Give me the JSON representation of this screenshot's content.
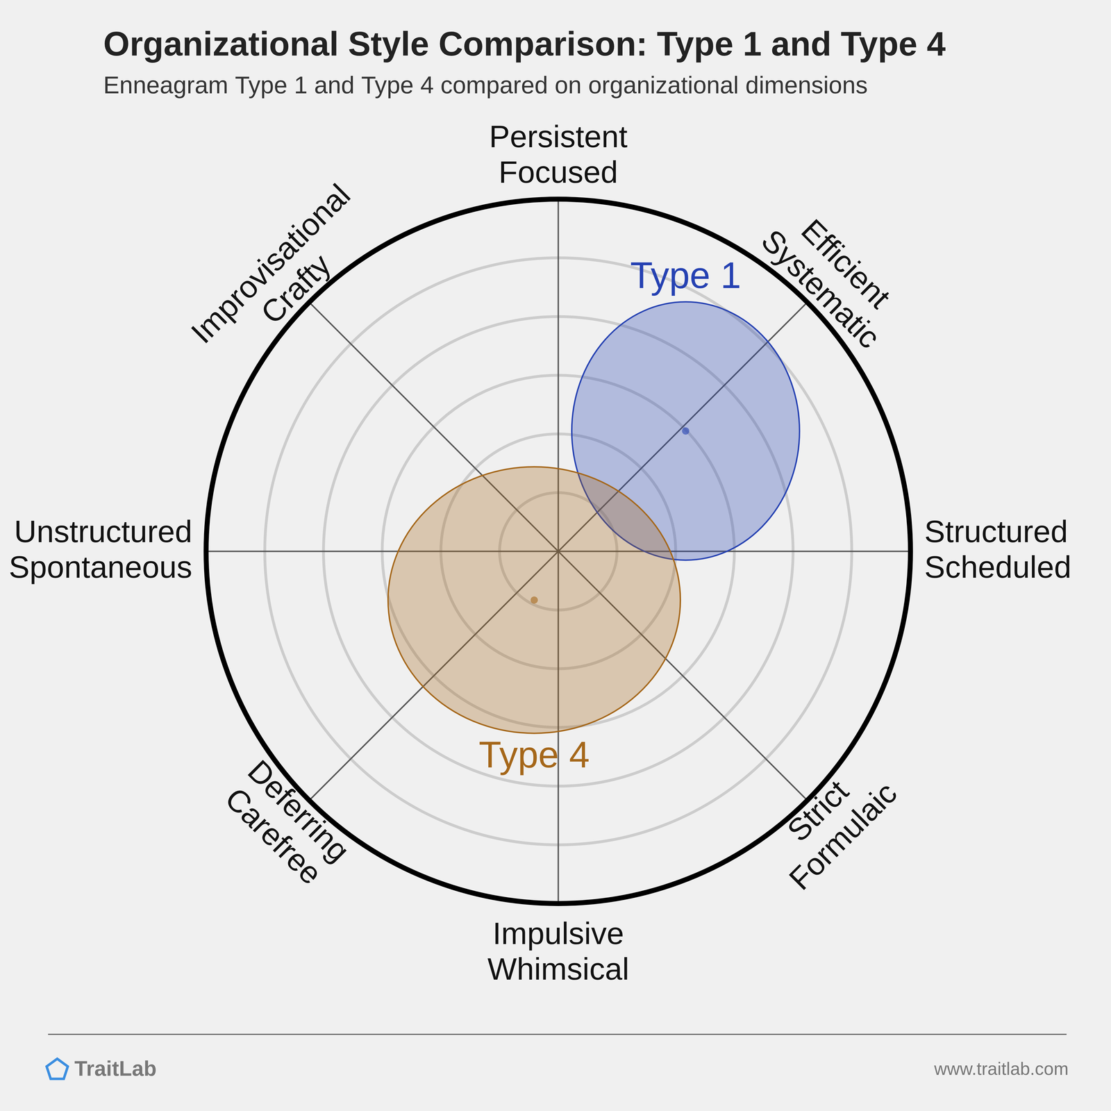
{
  "chart_data": {
    "type": "scatter",
    "title": "Organizational Style Comparison: Type 1 and Type 4",
    "subtitle": "Enneagram Type 1 and Type 4 compared on organizational dimensions",
    "dimensions": [
      [
        "Persistent",
        "Focused"
      ],
      [
        "Efficient",
        "Systematic"
      ],
      [
        "Structured",
        "Scheduled"
      ],
      [
        "Strict",
        "Formulaic"
      ],
      [
        "Impulsive",
        "Whimsical"
      ],
      [
        "Deferring",
        "Carefree"
      ],
      [
        "Unstructured",
        "Spontaneous"
      ],
      [
        "Improvisational",
        "Crafty"
      ]
    ],
    "series": [
      {
        "name": "Type 1",
        "color": "#2541b2",
        "x": 2.17,
        "y": 2.05,
        "x_spread": 1.94,
        "y_spread": 2.2
      },
      {
        "name": "Type 4",
        "color": "#a5671a",
        "x": -0.41,
        "y": -0.83,
        "x_spread": 2.49,
        "y_spread": 2.27
      }
    ],
    "xlim": [
      -6,
      6
    ],
    "ylim": [
      -6,
      6
    ],
    "rlim": [
      0,
      6
    ],
    "rticks": [
      1,
      2,
      3,
      4,
      5
    ],
    "grid": true,
    "tick_labels": false
  },
  "footer": {
    "brand": "TraitLab",
    "url": "www.traitlab.com"
  }
}
